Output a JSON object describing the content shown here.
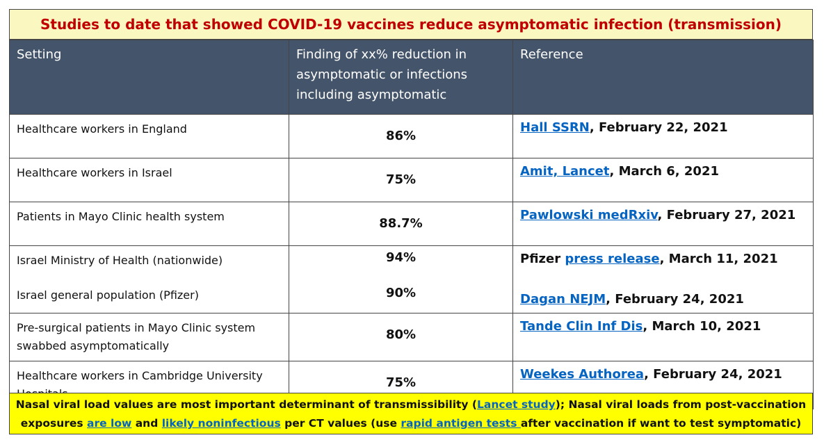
{
  "title": "Studies to date that showed COVID-19 vaccines reduce asymptomatic infection (transmission)",
  "headers": {
    "setting": "Setting",
    "finding": "Finding of xx% reduction in asymptomatic or infections including asymptomatic",
    "reference": "Reference"
  },
  "rows": [
    {
      "setting": "Healthcare workers in England",
      "finding": "86%",
      "ref_link": "Hall SSRN",
      "ref_rest": ", February 22, 2021"
    },
    {
      "setting": "Healthcare workers in Israel",
      "finding": "75%",
      "ref_link": "Amit, Lancet",
      "ref_rest": ", March 6, 2021"
    },
    {
      "setting": "Patients in Mayo Clinic health system",
      "finding": "88.7%",
      "ref_link": "Pawlowski medRxiv",
      "ref_rest": ", February 27, 2021"
    },
    {
      "setting": "Israel Ministry of Health (nationwide)",
      "finding": "94%",
      "ref_prefix": "Pfizer ",
      "ref_link": "press release",
      "ref_rest": ", March 11, 2021",
      "setting2": "Israel general population (Pfizer)",
      "finding2": "90%",
      "ref2_link": "Dagan NEJM",
      "ref2_rest": ", February 24, 2021"
    },
    {
      "setting": "Pre-surgical patients in Mayo Clinic system swabbed asymptomatically",
      "finding": "80%",
      "ref_link": "Tande Clin Inf Dis",
      "ref_rest": ", March 10, 2021"
    },
    {
      "setting": "Healthcare workers in Cambridge University Hospitals",
      "finding": "75%",
      "ref_link": "Weekes Authorea",
      "ref_rest": ", February 24, 2021"
    }
  ],
  "footer": {
    "t1": "Nasal viral load values are most important determinant of transmissibility (",
    "l1": "Lancet study",
    "t2": "); Nasal viral loads from post-vaccination exposures ",
    "l2": "are low",
    "t3": " and ",
    "l3": "likely noninfectious",
    "t4": " per CT values (use ",
    "l4": "rapid antigen tests ",
    "t5": "after vaccination if want to test symptomatic)"
  }
}
